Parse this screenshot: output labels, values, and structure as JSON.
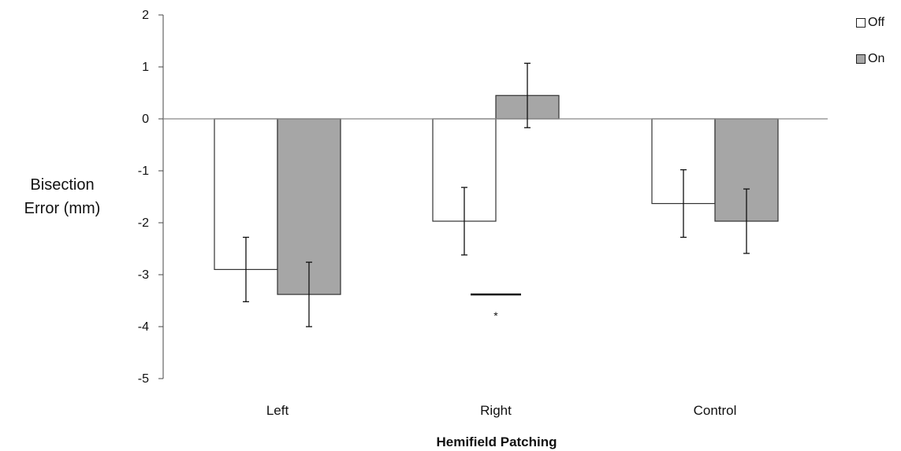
{
  "chart_data": {
    "type": "bar",
    "categories": [
      "Left",
      "Right",
      "Control"
    ],
    "series": [
      {
        "name": "Off",
        "values": [
          -2.9,
          -1.97,
          -1.63
        ],
        "error": [
          0.62,
          0.65,
          0.65
        ],
        "color": "#ffffff"
      },
      {
        "name": "On",
        "values": [
          -3.38,
          0.45,
          -1.97
        ],
        "error": [
          0.62,
          0.62,
          0.62
        ],
        "color": "#a6a6a6"
      }
    ],
    "xlabel": "Hemifield Patching",
    "ylabel": [
      "Bisection",
      "Error (mm)"
    ],
    "ylim": [
      -5,
      2
    ],
    "yticks": [
      2,
      1,
      0,
      -1,
      -2,
      -3,
      -4,
      -5
    ],
    "legend_position": "top-right",
    "grid": false,
    "annotation": {
      "category": "Right",
      "y_value": -3.38,
      "marker": "*"
    }
  }
}
